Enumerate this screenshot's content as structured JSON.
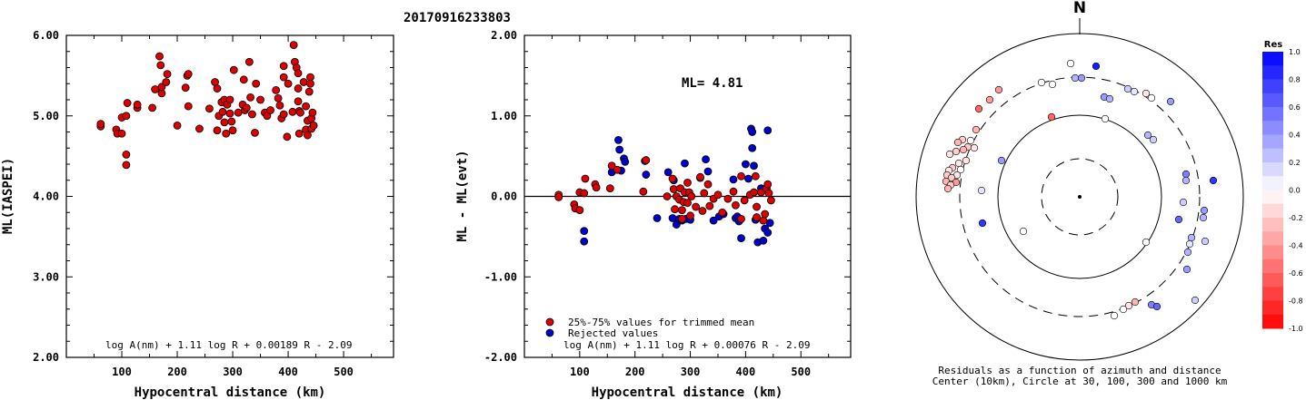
{
  "title": "20170916233803",
  "colors": {
    "accepted": "#dd0000",
    "rejected": "#0000cc",
    "axis": "#000000"
  },
  "panel1": {
    "xlabel": "Hypocentral distance (km)",
    "ylabel": "ML(IASPEI)",
    "formula": "log A(nm) + 1.11 log R + 0.00189 R - 2.09",
    "xticks": [
      "100",
      "200",
      "300",
      "400",
      "500"
    ],
    "yticks": [
      "2.00",
      "3.00",
      "4.00",
      "5.00",
      "6.00"
    ]
  },
  "panel2": {
    "xlabel": "Hypocentral distance (km)",
    "ylabel": "ML - ML(evt)",
    "ml_label": "ML= 4.81",
    "formula": "log A(nm) + 1.11 log R + 0.00076 R - 2.09",
    "legend_accepted": "25%-75% values for trimmed mean",
    "legend_rejected": "Rejected values",
    "xticks": [
      "100",
      "200",
      "300",
      "400",
      "500"
    ],
    "yticks": [
      "-2.00",
      "-1.00",
      "0.00",
      "1.00",
      "2.00"
    ]
  },
  "panel3": {
    "north": "N",
    "caption_line1": "Residuals as a function of azimuth and distance",
    "caption_line2": "Center (10km), Circle at 30, 100, 300 and 1000 km",
    "colorbar_title": "Res",
    "colorbar_ticks": [
      "1.0",
      "0.8",
      "0.6",
      "0.4",
      "0.2",
      "0.0",
      "-0.2",
      "-0.4",
      "-0.6",
      "-0.8",
      "-1.0"
    ]
  },
  "chart_data": [
    {
      "type": "scatter",
      "title": "20170916233803",
      "xlabel": "Hypocentral distance (km)",
      "ylabel": "ML(IASPEI)",
      "xlim": [
        0,
        590
      ],
      "ylim": [
        2.0,
        6.0
      ],
      "points": [
        [
          62,
          4.87
        ],
        [
          62,
          4.9
        ],
        [
          90,
          4.83
        ],
        [
          92,
          4.78
        ],
        [
          100,
          4.78
        ],
        [
          100,
          4.98
        ],
        [
          108,
          5.0
        ],
        [
          108,
          4.52
        ],
        [
          108,
          4.39
        ],
        [
          110,
          5.16
        ],
        [
          128,
          5.1
        ],
        [
          128,
          5.14
        ],
        [
          155,
          5.1
        ],
        [
          160,
          5.33
        ],
        [
          168,
          5.74
        ],
        [
          170,
          5.63
        ],
        [
          172,
          5.28
        ],
        [
          172,
          5.36
        ],
        [
          180,
          5.42
        ],
        [
          182,
          5.52
        ],
        [
          200,
          4.88
        ],
        [
          215,
          5.35
        ],
        [
          218,
          5.5
        ],
        [
          220,
          5.52
        ],
        [
          220,
          5.12
        ],
        [
          240,
          4.84
        ],
        [
          258,
          5.09
        ],
        [
          268,
          5.42
        ],
        [
          272,
          5.34
        ],
        [
          272,
          4.82
        ],
        [
          275,
          5.0
        ],
        [
          280,
          5.17
        ],
        [
          282,
          5.05
        ],
        [
          285,
          4.92
        ],
        [
          285,
          5.2
        ],
        [
          288,
          4.78
        ],
        [
          290,
          5.14
        ],
        [
          295,
          5.2
        ],
        [
          295,
          5.03
        ],
        [
          298,
          4.93
        ],
        [
          300,
          4.82
        ],
        [
          302,
          5.57
        ],
        [
          310,
          5.04
        ],
        [
          318,
          5.14
        ],
        [
          320,
          5.45
        ],
        [
          322,
          5.07
        ],
        [
          325,
          5.1
        ],
        [
          330,
          5.67
        ],
        [
          332,
          5.23
        ],
        [
          335,
          5.02
        ],
        [
          340,
          4.79
        ],
        [
          342,
          5.4
        ],
        [
          350,
          5.2
        ],
        [
          358,
          5.04
        ],
        [
          362,
          5.0
        ],
        [
          368,
          5.07
        ],
        [
          378,
          5.32
        ],
        [
          382,
          5.22
        ],
        [
          385,
          5.13
        ],
        [
          388,
          4.97
        ],
        [
          392,
          5.02
        ],
        [
          392,
          5.62
        ],
        [
          392,
          5.48
        ],
        [
          398,
          4.74
        ],
        [
          400,
          5.4
        ],
        [
          408,
          5.05
        ],
        [
          410,
          5.88
        ],
        [
          412,
          5.67
        ],
        [
          415,
          5.6
        ],
        [
          418,
          5.53
        ],
        [
          418,
          5.34
        ],
        [
          418,
          5.18
        ],
        [
          420,
          4.78
        ],
        [
          420,
          5.06
        ],
        [
          422,
          5.04
        ],
        [
          428,
          5.42
        ],
        [
          432,
          4.83
        ],
        [
          432,
          5.12
        ],
        [
          435,
          4.94
        ],
        [
          435,
          4.76
        ],
        [
          438,
          5.3
        ],
        [
          440,
          5.48
        ],
        [
          440,
          5.4
        ],
        [
          442,
          4.97
        ],
        [
          442,
          4.84
        ],
        [
          444,
          5.04
        ],
        [
          446,
          4.88
        ]
      ]
    },
    {
      "type": "scatter",
      "xlabel": "Hypocentral distance (km)",
      "ylabel": "ML - ML(evt)",
      "xlim": [
        0,
        590
      ],
      "ylim": [
        -2.0,
        2.0
      ],
      "annotation": "ML= 4.81",
      "series": [
        {
          "name": "25%-75% values for trimmed mean",
          "points": [
            [
              62,
              0.02
            ],
            [
              62,
              -0.01
            ],
            [
              90,
              -0.1
            ],
            [
              92,
              -0.15
            ],
            [
              100,
              -0.17
            ],
            [
              100,
              0.05
            ],
            [
              108,
              0.04
            ],
            [
              110,
              0.22
            ],
            [
              128,
              0.15
            ],
            [
              130,
              0.11
            ],
            [
              155,
              0.1
            ],
            [
              158,
              0.38
            ],
            [
              168,
              0.33
            ],
            [
              215,
              0.06
            ],
            [
              220,
              0.45
            ],
            [
              258,
              0.0
            ],
            [
              268,
              0.22
            ],
            [
              270,
              0.09
            ],
            [
              272,
              -0.16
            ],
            [
              275,
              0.0
            ],
            [
              280,
              -0.04
            ],
            [
              282,
              0.1
            ],
            [
              285,
              -0.28
            ],
            [
              285,
              -0.17
            ],
            [
              288,
              -0.07
            ],
            [
              290,
              0.05
            ],
            [
              295,
              0.17
            ],
            [
              295,
              -0.08
            ],
            [
              298,
              0.05
            ],
            [
              300,
              -0.24
            ],
            [
              302,
              0.0
            ],
            [
              310,
              -0.13
            ],
            [
              318,
              0.24
            ],
            [
              322,
              -0.18
            ],
            [
              325,
              0.04
            ],
            [
              332,
              0.15
            ],
            [
              335,
              -0.12
            ],
            [
              342,
              -0.03
            ],
            [
              350,
              0.02
            ],
            [
              358,
              -0.2
            ],
            [
              368,
              -0.03
            ],
            [
              378,
              0.06
            ],
            [
              382,
              -0.11
            ],
            [
              392,
              0.25
            ],
            [
              392,
              -0.28
            ],
            [
              398,
              -0.05
            ],
            [
              408,
              0.02
            ],
            [
              415,
              0.05
            ],
            [
              418,
              0.25
            ],
            [
              420,
              -0.13
            ],
            [
              420,
              -0.26
            ],
            [
              428,
              0.05
            ],
            [
              432,
              -0.3
            ],
            [
              435,
              -0.22
            ],
            [
              438,
              0.1
            ],
            [
              440,
              0.15
            ],
            [
              442,
              0.04
            ],
            [
              446,
              -0.05
            ]
          ]
        },
        {
          "name": "Rejected values",
          "points": [
            [
              108,
              -0.43
            ],
            [
              108,
              -0.56
            ],
            [
              158,
              0.3
            ],
            [
              170,
              0.7
            ],
            [
              172,
              0.58
            ],
            [
              175,
              0.32
            ],
            [
              180,
              0.47
            ],
            [
              182,
              0.43
            ],
            [
              218,
              0.44
            ],
            [
              220,
              0.27
            ],
            [
              240,
              -0.27
            ],
            [
              260,
              0.3
            ],
            [
              268,
              -0.27
            ],
            [
              270,
              0.2
            ],
            [
              275,
              -0.35
            ],
            [
              280,
              -0.28
            ],
            [
              285,
              -0.3
            ],
            [
              290,
              0.41
            ],
            [
              292,
              -0.28
            ],
            [
              300,
              -0.29
            ],
            [
              318,
              0.23
            ],
            [
              328,
              0.46
            ],
            [
              332,
              0.31
            ],
            [
              342,
              -0.3
            ],
            [
              352,
              -0.25
            ],
            [
              360,
              -0.22
            ],
            [
              378,
              0.21
            ],
            [
              382,
              -0.27
            ],
            [
              385,
              -0.25
            ],
            [
              388,
              -0.31
            ],
            [
              392,
              -0.52
            ],
            [
              400,
              0.4
            ],
            [
              405,
              0.22
            ],
            [
              410,
              0.84
            ],
            [
              412,
              0.8
            ],
            [
              412,
              0.6
            ],
            [
              415,
              0.38
            ],
            [
              418,
              -0.29
            ],
            [
              422,
              -0.57
            ],
            [
              428,
              0.1
            ],
            [
              432,
              -0.55
            ],
            [
              435,
              -0.4
            ],
            [
              440,
              0.82
            ],
            [
              440,
              -0.45
            ],
            [
              444,
              -0.33
            ]
          ]
        }
      ]
    }
  ]
}
